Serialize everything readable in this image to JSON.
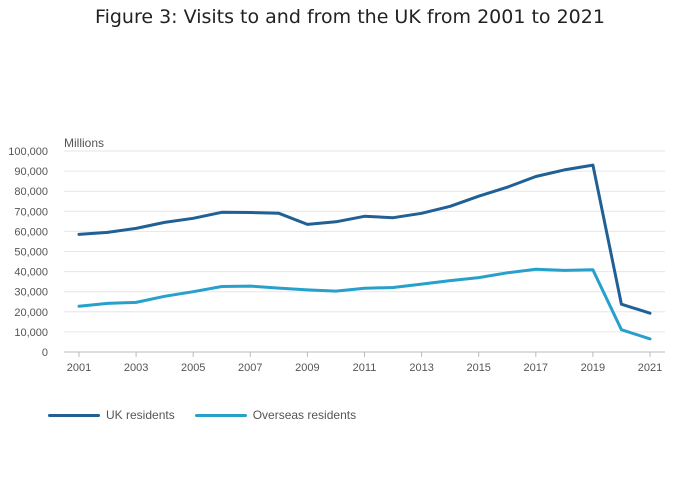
{
  "chart_data": {
    "type": "line",
    "title": "Figure 3: Visits to and from the UK from 2001 to 2021",
    "ylabel": "Millions",
    "xlabel": "",
    "x": [
      2001,
      2002,
      2003,
      2004,
      2005,
      2006,
      2007,
      2008,
      2009,
      2010,
      2011,
      2012,
      2013,
      2014,
      2015,
      2016,
      2017,
      2018,
      2019,
      2020,
      2021
    ],
    "ylim": [
      0,
      100000
    ],
    "yticks": [
      0,
      10000,
      20000,
      30000,
      40000,
      50000,
      60000,
      70000,
      80000,
      90000,
      100000
    ],
    "ytick_labels": [
      "0",
      "10,000",
      "20,000",
      "30,000",
      "40,000",
      "50,000",
      "60,000",
      "70,000",
      "80,000",
      "90,000",
      "100,000"
    ],
    "xticks": [
      2001,
      2003,
      2005,
      2007,
      2009,
      2011,
      2013,
      2015,
      2017,
      2019,
      2021
    ],
    "xtick_labels": [
      "2001",
      "2003",
      "2005",
      "2007",
      "2009",
      "2011",
      "2013",
      "2015",
      "2017",
      "2019",
      "2021"
    ],
    "grid": true,
    "legend_position": "bottom-left",
    "series": [
      {
        "name": "UK residents",
        "color": "#206095",
        "values": [
          58500,
          59500,
          61500,
          64500,
          66500,
          69500,
          69400,
          69000,
          63500,
          64800,
          67500,
          66800,
          69000,
          72500,
          77500,
          82000,
          87300,
          90600,
          93000,
          23800,
          19300
        ]
      },
      {
        "name": "Overseas residents",
        "color": "#27A0CC",
        "values": [
          22800,
          24200,
          24700,
          27700,
          30000,
          32600,
          32800,
          31800,
          30900,
          30300,
          31700,
          32100,
          33800,
          35500,
          37000,
          39400,
          41200,
          40600,
          40900,
          11100,
          6500
        ]
      }
    ]
  }
}
